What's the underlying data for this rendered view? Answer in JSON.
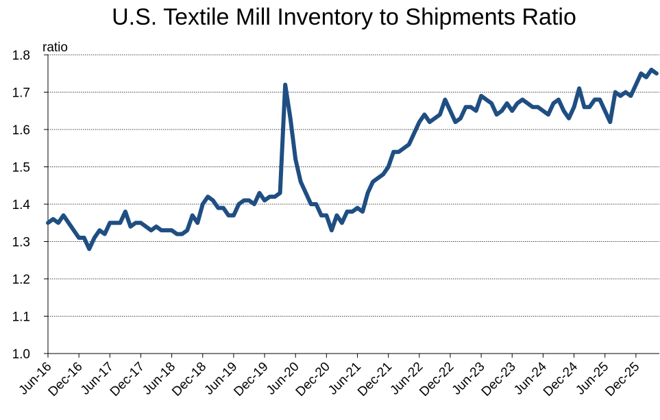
{
  "chart_data": {
    "type": "line",
    "title": "U.S. Textile Mill Inventory to Shipments Ratio",
    "ylabel": "ratio",
    "xlabel": "",
    "ylim": [
      1.0,
      1.8
    ],
    "yticks": [
      "1.0",
      "1.1",
      "1.2",
      "1.3",
      "1.4",
      "1.5",
      "1.6",
      "1.7",
      "1.8"
    ],
    "xticks": [
      "Jun-16",
      "Dec-16",
      "Jun-17",
      "Dec-17",
      "Jun-18",
      "Dec-18",
      "Jun-19",
      "Dec-19",
      "Jun-20",
      "Dec-20",
      "Jun-21",
      "Dec-21",
      "Jun-22",
      "Dec-22",
      "Jun-23",
      "Dec-23",
      "Jun-24",
      "Dec-24",
      "Jun-25",
      "Dec-25"
    ],
    "x_start": "Jun-16",
    "grid": "horizontal",
    "color": "#1f4e82",
    "series": [
      {
        "values": [
          1.35,
          1.36,
          1.35,
          1.37,
          1.35,
          1.33,
          1.31,
          1.31,
          1.28,
          1.31,
          1.33,
          1.32,
          1.35,
          1.35,
          1.35,
          1.38,
          1.34,
          1.35,
          1.35,
          1.34,
          1.33,
          1.34,
          1.33,
          1.33,
          1.33,
          1.32,
          1.32,
          1.33,
          1.37,
          1.35,
          1.4,
          1.42,
          1.41,
          1.39,
          1.39,
          1.37,
          1.37,
          1.4,
          1.41,
          1.41,
          1.4,
          1.43,
          1.41,
          1.42,
          1.42,
          1.43,
          1.72,
          1.63,
          1.52,
          1.46,
          1.43,
          1.4,
          1.4,
          1.37,
          1.37,
          1.33,
          1.37,
          1.35,
          1.38,
          1.38,
          1.39,
          1.38,
          1.43,
          1.46,
          1.47,
          1.48,
          1.5,
          1.54,
          1.54,
          1.55,
          1.56,
          1.59,
          1.62,
          1.64,
          1.62,
          1.63,
          1.64,
          1.68,
          1.65,
          1.62,
          1.63,
          1.66,
          1.66,
          1.65,
          1.69,
          1.68,
          1.67,
          1.64,
          1.65,
          1.67,
          1.65,
          1.67,
          1.68,
          1.67,
          1.66,
          1.66,
          1.65,
          1.64,
          1.67,
          1.68,
          1.65,
          1.63,
          1.66,
          1.71,
          1.66,
          1.66,
          1.68,
          1.68,
          1.65,
          1.62,
          1.7,
          1.69,
          1.7,
          1.69,
          1.72,
          1.75,
          1.74,
          1.76,
          1.75
        ]
      }
    ]
  }
}
